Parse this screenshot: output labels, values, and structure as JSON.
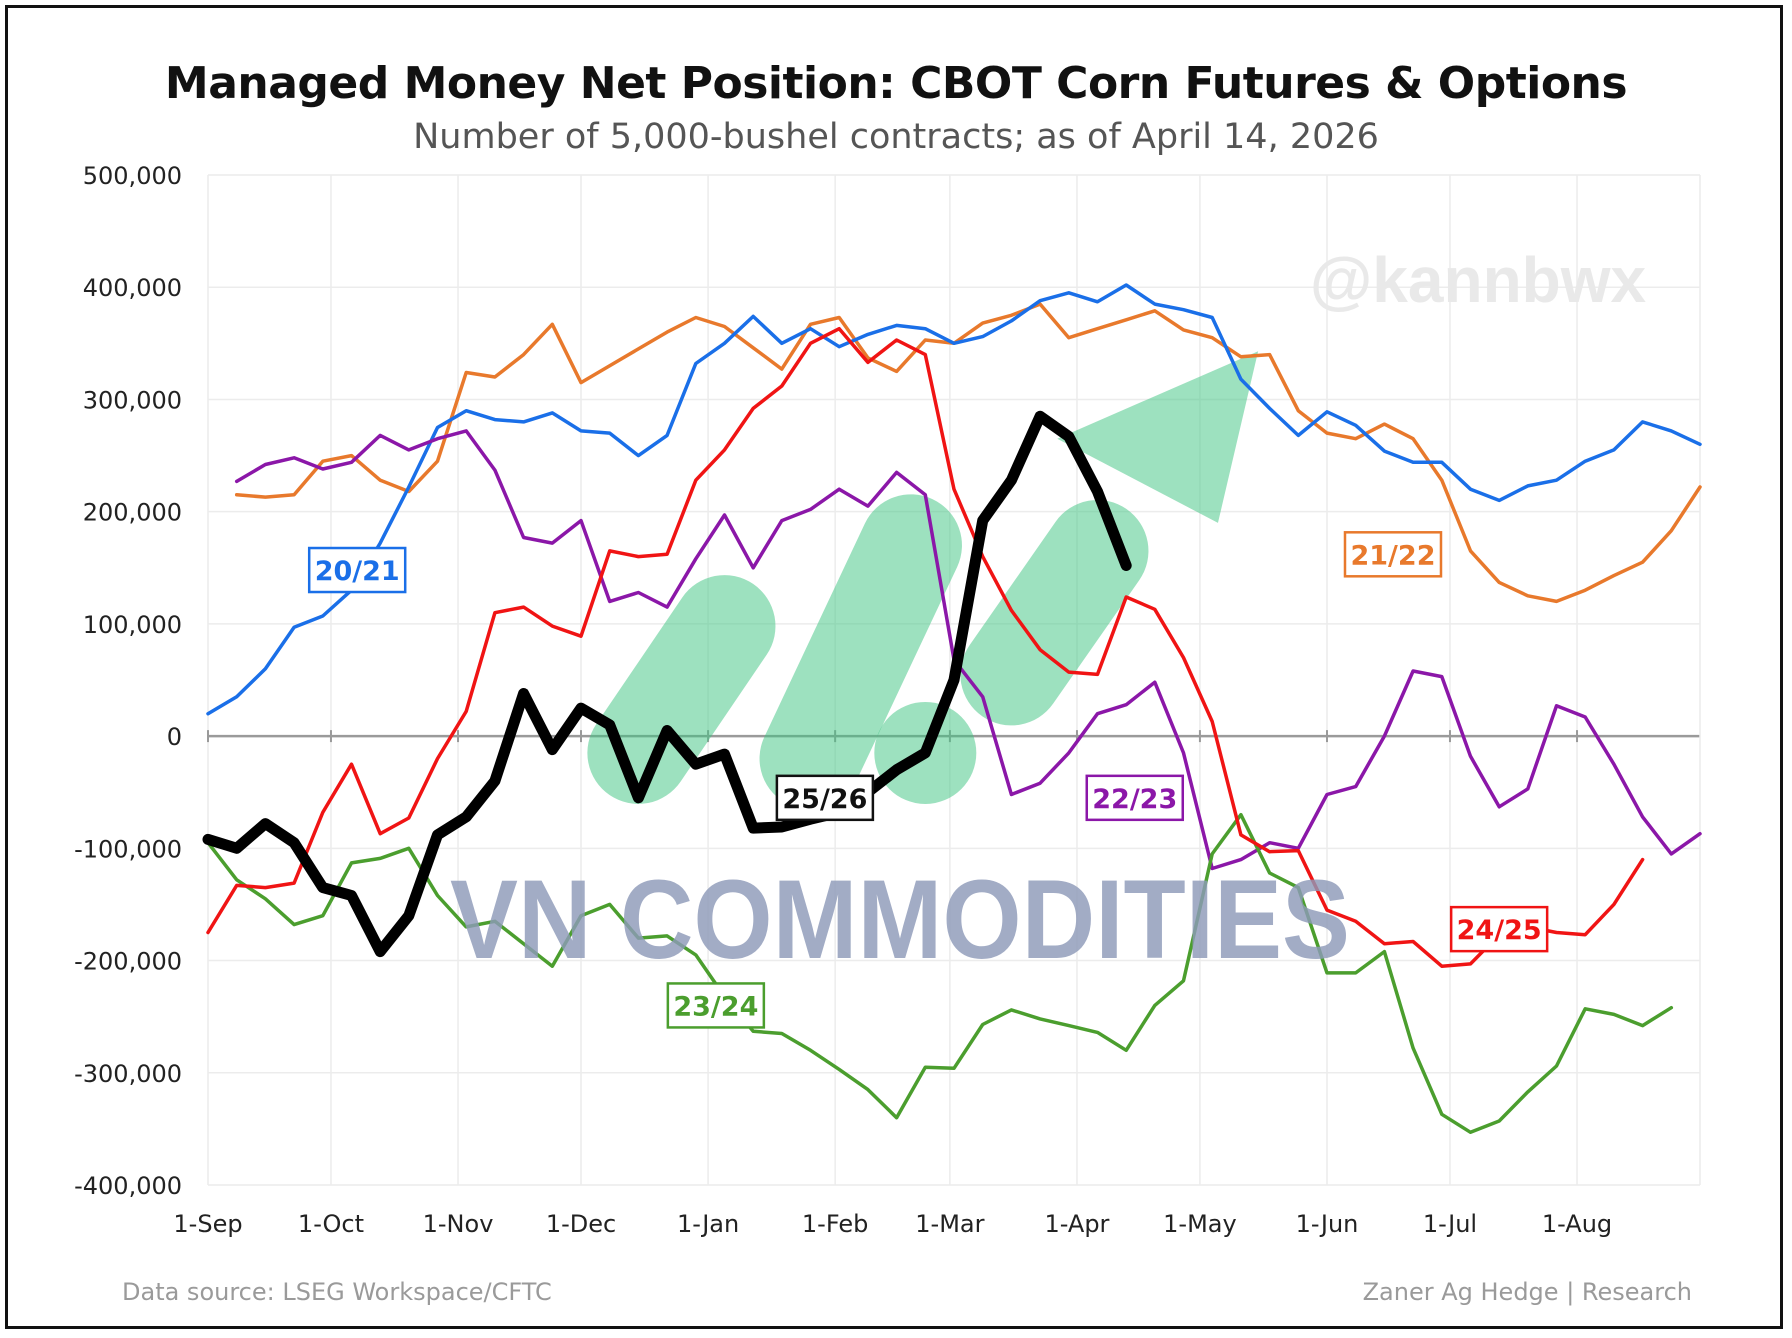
{
  "chart_data": {
    "type": "line",
    "title": "Managed Money Net Position: CBOT Corn Futures & Options",
    "subtitle": "Number of 5,000-bushel contracts; as of April 14, 2026",
    "x_ticks": [
      "1-Sep",
      "1-Oct",
      "1-Nov",
      "1-Dec",
      "1-Jan",
      "1-Feb",
      "1-Mar",
      "1-Apr",
      "1-May",
      "1-Jun",
      "1-Jul",
      "1-Aug"
    ],
    "y_ticks": [
      "500,000",
      "400,000",
      "300,000",
      "200,000",
      "100,000",
      "0",
      "-100,000",
      "-200,000",
      "-300,000",
      "-400,000"
    ],
    "ylim": [
      -400000,
      500000
    ],
    "x_unit": "week of marketing year (Sep–Aug)",
    "xlim": [
      0,
      52
    ],
    "grid": true,
    "series": [
      {
        "name": "20/21",
        "color": "#1a6fe8",
        "width": 3.5,
        "points": [
          [
            0,
            20000
          ],
          [
            1,
            35000
          ],
          [
            2,
            60000
          ],
          [
            3,
            97000
          ],
          [
            4,
            107000
          ],
          [
            5,
            130000
          ],
          [
            6,
            172000
          ],
          [
            7,
            222000
          ],
          [
            8,
            275000
          ],
          [
            9,
            290000
          ],
          [
            10,
            282000
          ],
          [
            11,
            280000
          ],
          [
            12,
            288000
          ],
          [
            13,
            272000
          ],
          [
            14,
            270000
          ],
          [
            15,
            250000
          ],
          [
            16,
            268000
          ],
          [
            17,
            332000
          ],
          [
            18,
            350000
          ],
          [
            19,
            374000
          ],
          [
            20,
            350000
          ],
          [
            21,
            363000
          ],
          [
            22,
            347000
          ],
          [
            23,
            358000
          ],
          [
            24,
            366000
          ],
          [
            25,
            363000
          ],
          [
            26,
            350000
          ],
          [
            27,
            356000
          ],
          [
            28,
            370000
          ],
          [
            29,
            388000
          ],
          [
            30,
            395000
          ],
          [
            31,
            387000
          ],
          [
            32,
            402000
          ],
          [
            33,
            385000
          ],
          [
            34,
            380000
          ],
          [
            35,
            373000
          ],
          [
            36,
            318000
          ],
          [
            37,
            292000
          ],
          [
            38,
            268000
          ],
          [
            39,
            289000
          ],
          [
            40,
            277000
          ],
          [
            41,
            254000
          ],
          [
            42,
            244000
          ],
          [
            43,
            244000
          ],
          [
            44,
            220000
          ],
          [
            45,
            210000
          ],
          [
            46,
            223000
          ],
          [
            47,
            228000
          ],
          [
            48,
            245000
          ],
          [
            49,
            255000
          ],
          [
            50,
            280000
          ],
          [
            51,
            272000
          ],
          [
            52,
            260000
          ]
        ]
      },
      {
        "name": "21/22",
        "color": "#e8792c",
        "width": 3.5,
        "points": [
          [
            1,
            215000
          ],
          [
            2,
            213000
          ],
          [
            3,
            215000
          ],
          [
            4,
            245000
          ],
          [
            5,
            250000
          ],
          [
            6,
            228000
          ],
          [
            7,
            218000
          ],
          [
            8,
            245000
          ],
          [
            9,
            324000
          ],
          [
            10,
            320000
          ],
          [
            11,
            340000
          ],
          [
            12,
            367000
          ],
          [
            13,
            315000
          ],
          [
            14,
            330000
          ],
          [
            15,
            345000
          ],
          [
            16,
            360000
          ],
          [
            17,
            373000
          ],
          [
            18,
            365000
          ],
          [
            19,
            346000
          ],
          [
            20,
            327000
          ],
          [
            21,
            367000
          ],
          [
            22,
            373000
          ],
          [
            23,
            337000
          ],
          [
            24,
            325000
          ],
          [
            25,
            353000
          ],
          [
            26,
            350000
          ],
          [
            27,
            368000
          ],
          [
            28,
            375000
          ],
          [
            29,
            385000
          ],
          [
            30,
            355000
          ],
          [
            31,
            363000
          ],
          [
            32,
            371000
          ],
          [
            33,
            379000
          ],
          [
            34,
            362000
          ],
          [
            35,
            355000
          ],
          [
            36,
            338000
          ],
          [
            37,
            340000
          ],
          [
            38,
            290000
          ],
          [
            39,
            270000
          ],
          [
            40,
            265000
          ],
          [
            41,
            278000
          ],
          [
            42,
            265000
          ],
          [
            43,
            228000
          ],
          [
            44,
            165000
          ],
          [
            45,
            137000
          ],
          [
            46,
            125000
          ],
          [
            47,
            120000
          ],
          [
            48,
            130000
          ],
          [
            49,
            143000
          ],
          [
            50,
            155000
          ],
          [
            51,
            183000
          ],
          [
            52,
            222000
          ]
        ]
      },
      {
        "name": "22/23",
        "color": "#8b17a8",
        "width": 3.5,
        "points": [
          [
            1,
            227000
          ],
          [
            2,
            242000
          ],
          [
            3,
            248000
          ],
          [
            4,
            238000
          ],
          [
            5,
            244000
          ],
          [
            6,
            268000
          ],
          [
            7,
            255000
          ],
          [
            8,
            265000
          ],
          [
            9,
            272000
          ],
          [
            10,
            237000
          ],
          [
            11,
            177000
          ],
          [
            12,
            172000
          ],
          [
            13,
            192000
          ],
          [
            14,
            120000
          ],
          [
            15,
            128000
          ],
          [
            16,
            115000
          ],
          [
            17,
            158000
          ],
          [
            18,
            197000
          ],
          [
            19,
            150000
          ],
          [
            20,
            192000
          ],
          [
            21,
            202000
          ],
          [
            22,
            220000
          ],
          [
            23,
            205000
          ],
          [
            24,
            235000
          ],
          [
            25,
            215000
          ],
          [
            26,
            68000
          ],
          [
            27,
            35000
          ],
          [
            28,
            -52000
          ],
          [
            29,
            -42000
          ],
          [
            30,
            -15000
          ],
          [
            31,
            20000
          ],
          [
            32,
            28000
          ],
          [
            33,
            48000
          ],
          [
            34,
            -15000
          ],
          [
            35,
            -118000
          ],
          [
            36,
            -110000
          ],
          [
            37,
            -95000
          ],
          [
            38,
            -100000
          ],
          [
            39,
            -52000
          ],
          [
            40,
            -45000
          ],
          [
            41,
            0
          ],
          [
            42,
            58000
          ],
          [
            43,
            53000
          ],
          [
            44,
            -18000
          ],
          [
            45,
            -63000
          ],
          [
            46,
            -47000
          ],
          [
            47,
            27000
          ],
          [
            48,
            17000
          ],
          [
            49,
            -25000
          ],
          [
            50,
            -72000
          ],
          [
            51,
            -105000
          ],
          [
            52,
            -87000
          ]
        ]
      },
      {
        "name": "23/24",
        "color": "#4b9e2e",
        "width": 3.5,
        "points": [
          [
            0,
            -95000
          ],
          [
            1,
            -128000
          ],
          [
            2,
            -145000
          ],
          [
            3,
            -168000
          ],
          [
            4,
            -160000
          ],
          [
            5,
            -113000
          ],
          [
            6,
            -109000
          ],
          [
            7,
            -100000
          ],
          [
            8,
            -142000
          ],
          [
            9,
            -170000
          ],
          [
            10,
            -165000
          ],
          [
            11,
            -185000
          ],
          [
            12,
            -205000
          ],
          [
            13,
            -160000
          ],
          [
            14,
            -150000
          ],
          [
            15,
            -180000
          ],
          [
            16,
            -178000
          ],
          [
            17,
            -195000
          ],
          [
            18,
            -232000
          ],
          [
            19,
            -263000
          ],
          [
            20,
            -265000
          ],
          [
            21,
            -280000
          ],
          [
            22,
            -297000
          ],
          [
            23,
            -315000
          ],
          [
            24,
            -340000
          ],
          [
            25,
            -295000
          ],
          [
            26,
            -296000
          ],
          [
            27,
            -257000
          ],
          [
            28,
            -244000
          ],
          [
            29,
            -252000
          ],
          [
            30,
            -258000
          ],
          [
            31,
            -264000
          ],
          [
            32,
            -280000
          ],
          [
            33,
            -240000
          ],
          [
            34,
            -218000
          ],
          [
            35,
            -105000
          ],
          [
            36,
            -70000
          ],
          [
            37,
            -122000
          ],
          [
            38,
            -135000
          ],
          [
            39,
            -211000
          ],
          [
            40,
            -211000
          ],
          [
            41,
            -192000
          ],
          [
            42,
            -278000
          ],
          [
            43,
            -337000
          ],
          [
            44,
            -353000
          ],
          [
            45,
            -343000
          ],
          [
            46,
            -317000
          ],
          [
            47,
            -294000
          ],
          [
            48,
            -243000
          ],
          [
            49,
            -248000
          ],
          [
            50,
            -258000
          ],
          [
            51,
            -242000
          ]
        ]
      },
      {
        "name": "24/25",
        "color": "#f01414",
        "width": 3.5,
        "points": [
          [
            0,
            -175000
          ],
          [
            1,
            -133000
          ],
          [
            2,
            -135000
          ],
          [
            3,
            -131000
          ],
          [
            4,
            -68000
          ],
          [
            5,
            -25000
          ],
          [
            6,
            -87000
          ],
          [
            7,
            -73000
          ],
          [
            8,
            -20000
          ],
          [
            9,
            22000
          ],
          [
            10,
            110000
          ],
          [
            11,
            115000
          ],
          [
            12,
            98000
          ],
          [
            13,
            89000
          ],
          [
            14,
            165000
          ],
          [
            15,
            160000
          ],
          [
            16,
            162000
          ],
          [
            17,
            228000
          ],
          [
            18,
            255000
          ],
          [
            19,
            292000
          ],
          [
            20,
            312000
          ],
          [
            21,
            350000
          ],
          [
            22,
            363000
          ],
          [
            23,
            333000
          ],
          [
            24,
            353000
          ],
          [
            25,
            340000
          ],
          [
            26,
            220000
          ],
          [
            27,
            160000
          ],
          [
            28,
            112000
          ],
          [
            29,
            77000
          ],
          [
            30,
            57000
          ],
          [
            31,
            55000
          ],
          [
            32,
            124000
          ],
          [
            33,
            113000
          ],
          [
            34,
            70000
          ],
          [
            35,
            13000
          ],
          [
            36,
            -88000
          ],
          [
            37,
            -103000
          ],
          [
            38,
            -102000
          ],
          [
            39,
            -155000
          ],
          [
            40,
            -165000
          ],
          [
            41,
            -185000
          ],
          [
            42,
            -183000
          ],
          [
            43,
            -205000
          ],
          [
            44,
            -203000
          ],
          [
            45,
            -177000
          ],
          [
            46,
            -170000
          ],
          [
            47,
            -175000
          ],
          [
            48,
            -177000
          ],
          [
            49,
            -150000
          ],
          [
            50,
            -110000
          ]
        ]
      },
      {
        "name": "25/26",
        "color": "#000000",
        "width": 11,
        "points": [
          [
            0,
            -92000
          ],
          [
            1,
            -100000
          ],
          [
            2,
            -78000
          ],
          [
            3,
            -95000
          ],
          [
            4,
            -135000
          ],
          [
            5,
            -142000
          ],
          [
            6,
            -192000
          ],
          [
            7,
            -160000
          ],
          [
            8,
            -88000
          ],
          [
            9,
            -72000
          ],
          [
            10,
            -40000
          ],
          [
            11,
            38000
          ],
          [
            12,
            -12000
          ],
          [
            13,
            25000
          ],
          [
            14,
            10000
          ],
          [
            15,
            -55000
          ],
          [
            16,
            5000
          ],
          [
            17,
            -25000
          ],
          [
            18,
            -16000
          ],
          [
            19,
            -82000
          ],
          [
            20,
            -81000
          ],
          [
            21,
            -74000
          ],
          [
            22,
            -68000
          ],
          [
            23,
            -50000
          ],
          [
            24,
            -30000
          ],
          [
            25,
            -15000
          ],
          [
            26,
            50000
          ],
          [
            27,
            192000
          ],
          [
            28,
            228000
          ],
          [
            29,
            285000
          ],
          [
            30,
            267000
          ],
          [
            31,
            218000
          ],
          [
            32,
            152000
          ]
        ]
      }
    ],
    "series_labels": [
      {
        "series": "20/21",
        "text": "20/21",
        "color": "#1a6fe8"
      },
      {
        "series": "21/22",
        "text": "21/22",
        "color": "#e8792c"
      },
      {
        "series": "22/23",
        "text": "22/23",
        "color": "#8b17a8"
      },
      {
        "series": "23/24",
        "text": "23/24",
        "color": "#4b9e2e"
      },
      {
        "series": "24/25",
        "text": "24/25",
        "color": "#f01414"
      },
      {
        "series": "25/26",
        "text": "25/26",
        "color": "#111111"
      }
    ]
  },
  "watermarks": {
    "logo_text": "VN COMMODITIES",
    "handle": "@kannbwx"
  },
  "footer": {
    "source": "Data source: LSEG Workspace/CFTC",
    "credit": "Zaner Ag Hedge | Research"
  },
  "colors": {
    "grid": "#ececec",
    "zero_line": "#9a9a9a",
    "arrow_fill": "#3cc47f"
  }
}
